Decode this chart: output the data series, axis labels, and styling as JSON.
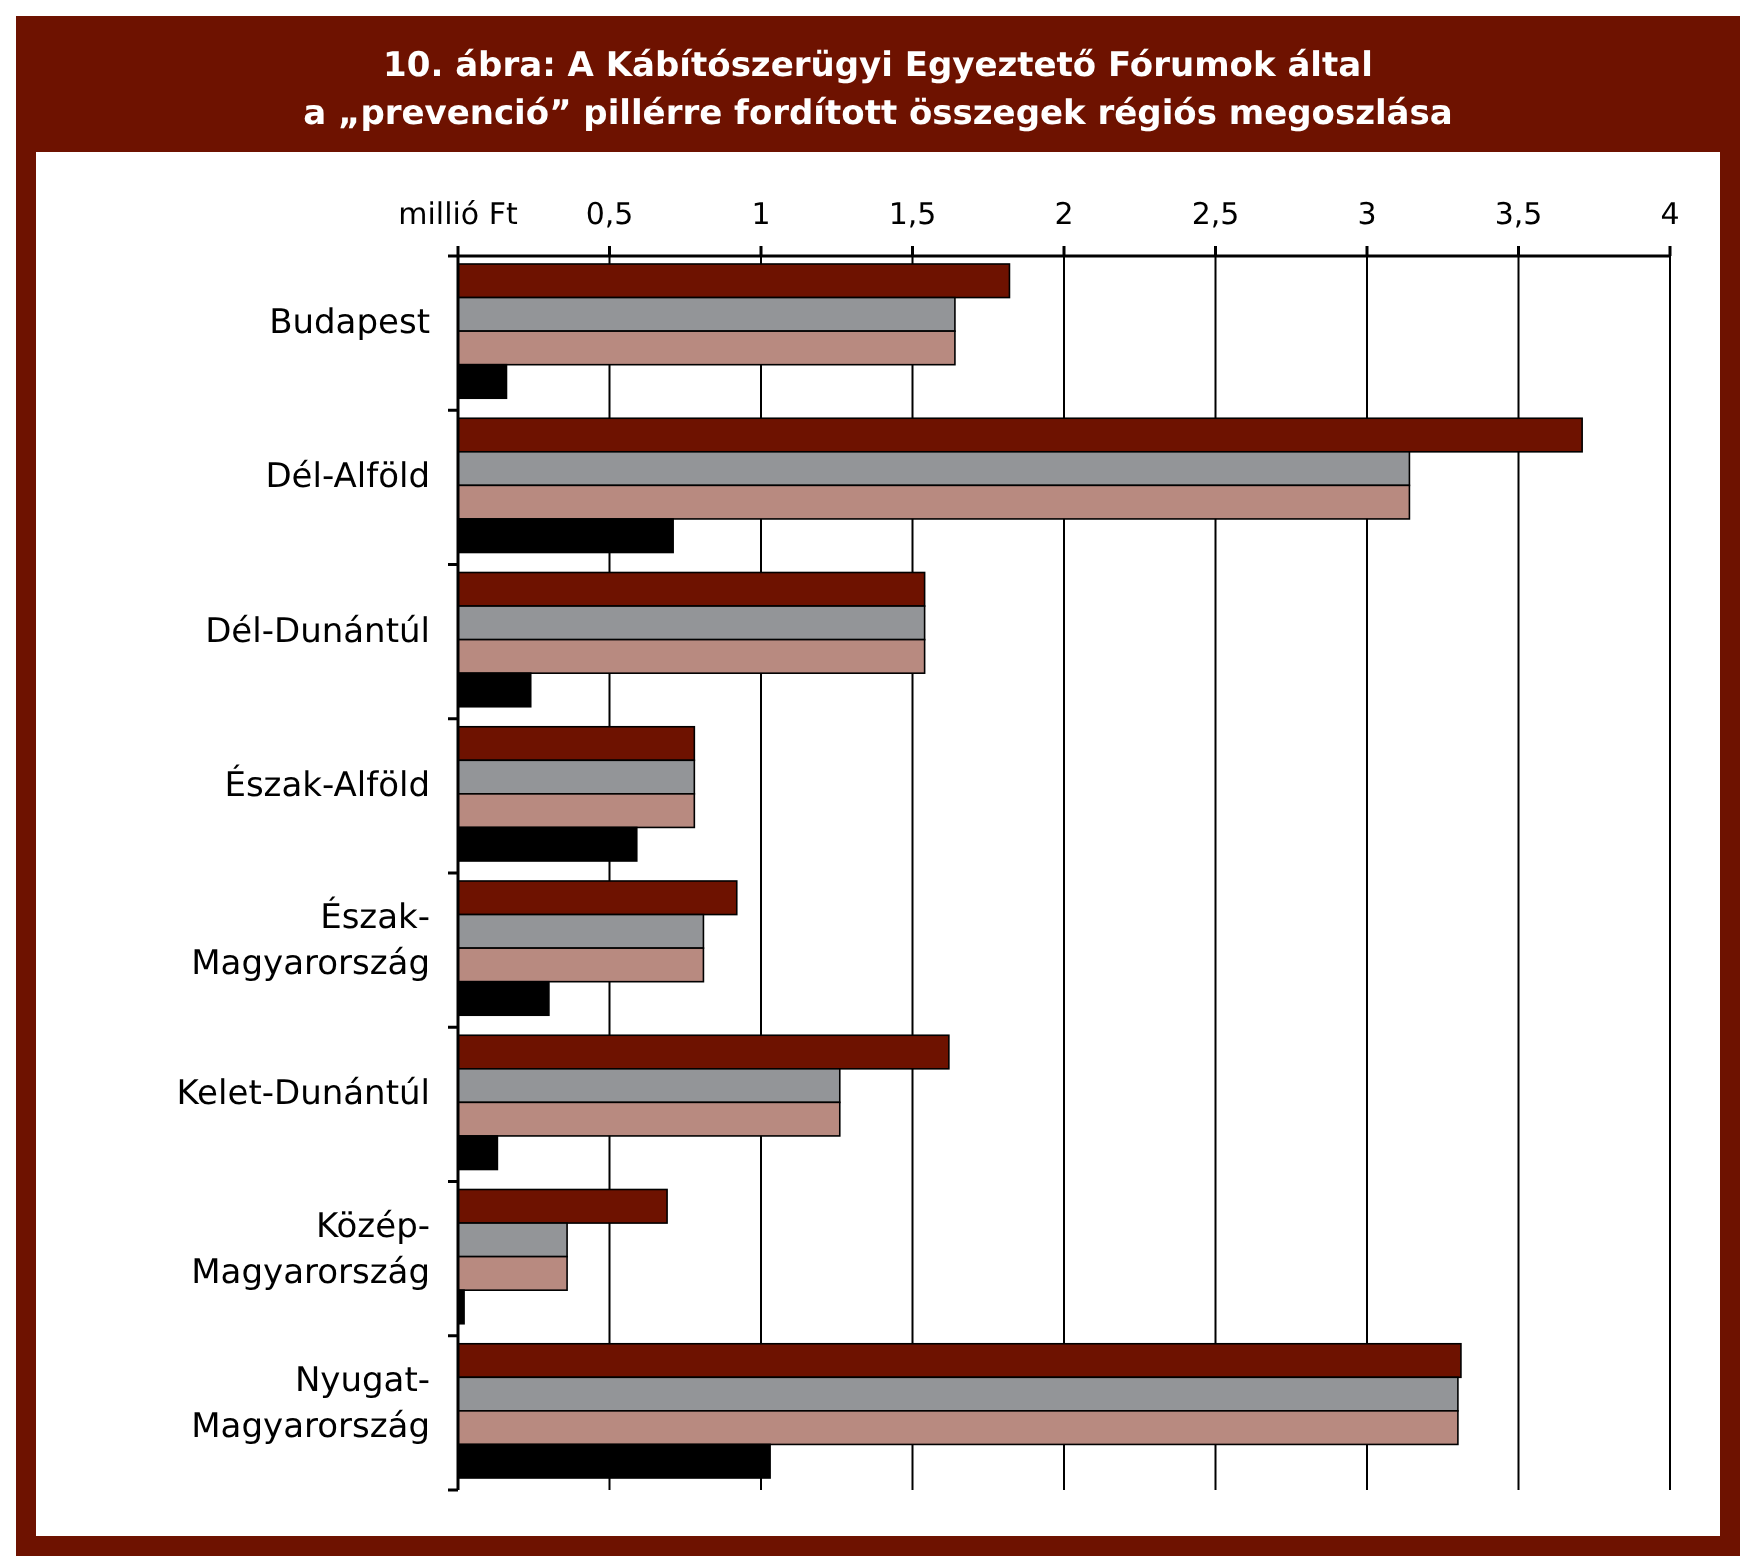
{
  "chart_data": {
    "type": "bar",
    "orientation": "horizontal",
    "title": "10. ábra: A Kábítószerügyi Egyeztető Fórumok által\na „prevenció” pillérre fordított összegek régiós megoszlása",
    "categories": [
      "Budapest",
      "Dél-Alföld",
      "Dél-Dunántúl",
      "Észak-Alföld",
      "Észak-Magyarország",
      "Kelet-Dunántúl",
      "Közép-Magyarország",
      "Nyugat-Magyarország"
    ],
    "series": [
      {
        "color": "#6e1200",
        "values": [
          1.82,
          3.71,
          1.54,
          0.78,
          0.92,
          1.62,
          0.69,
          3.31
        ]
      },
      {
        "color": "#939598",
        "values": [
          1.64,
          3.14,
          1.54,
          0.78,
          0.81,
          1.26,
          0.36,
          3.3
        ]
      },
      {
        "color": "#b88a80",
        "values": [
          1.64,
          3.14,
          1.54,
          0.78,
          0.81,
          1.26,
          0.36,
          3.3
        ]
      },
      {
        "color": "#000000",
        "values": [
          0.16,
          0.71,
          0.24,
          0.59,
          0.3,
          0.13,
          0.02,
          1.03
        ]
      }
    ],
    "xlim": [
      0,
      4
    ],
    "xticks": [
      {
        "value": 0,
        "label": "millió Ft"
      },
      {
        "value": 0.5,
        "label": "0,5"
      },
      1,
      {
        "value": 1.5,
        "label": "1,5"
      },
      2,
      {
        "value": 2.5,
        "label": "2,5"
      },
      3,
      {
        "value": 3.5,
        "label": "3,5"
      },
      4
    ],
    "grid": "x"
  }
}
